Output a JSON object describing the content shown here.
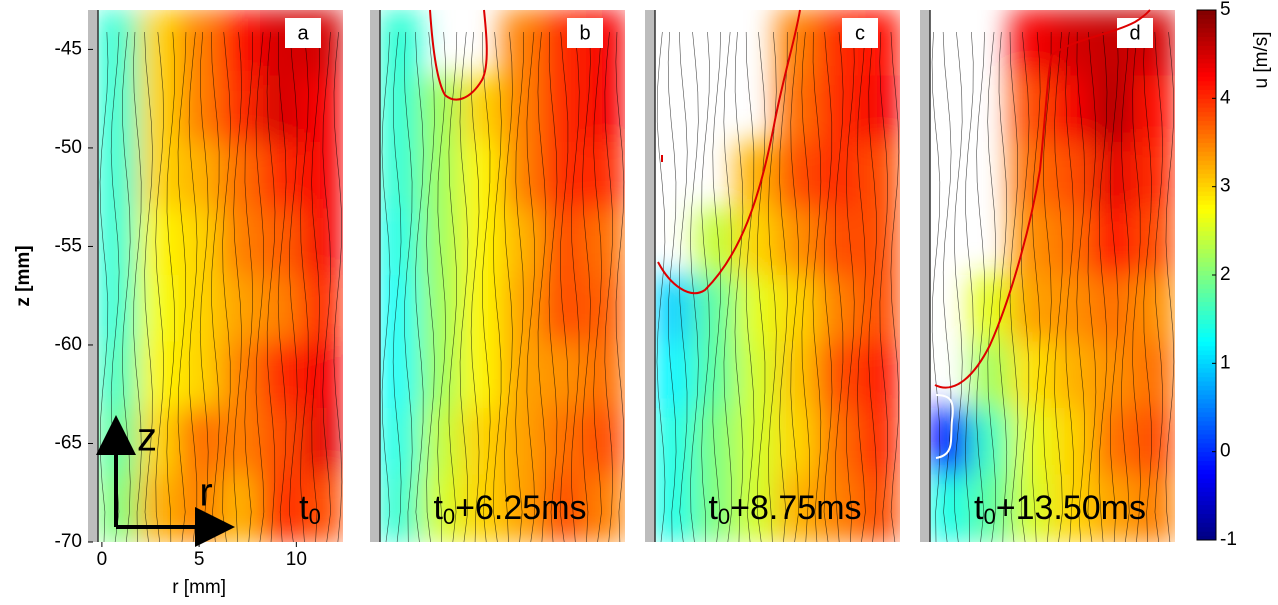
{
  "chart_data": {
    "type": "heatmap",
    "xlabel": "r [mm]",
    "ylabel": "z [mm]",
    "xlim": [
      -0.2,
      12.4
    ],
    "xticks": [
      0,
      5,
      10
    ],
    "ylim": [
      -70,
      -43
    ],
    "yticks": [
      -45,
      -50,
      -55,
      -60,
      -65,
      -70
    ],
    "colorbar": {
      "label": "u  [m/s]",
      "clim": [
        -1,
        5
      ],
      "ticks": [
        -1,
        0,
        1,
        2,
        3,
        4,
        5
      ]
    },
    "arrow_labels": [
      "z",
      "r"
    ],
    "panels": [
      {
        "letter": "a",
        "time": {
          "base": "t",
          "sub": "0"
        },
        "values": [
          [
            1.5,
            3,
            3.5,
            4.2,
            4.5,
            4.5
          ],
          [
            1.5,
            3,
            3.5,
            4,
            4.5,
            4.3
          ],
          [
            1.5,
            3,
            3.2,
            3.6,
            4,
            4.3
          ],
          [
            1.5,
            2.8,
            3,
            3.5,
            3.7,
            4.3
          ],
          [
            1.5,
            2.7,
            3,
            3.3,
            3.5,
            4
          ],
          [
            1.6,
            2.8,
            3,
            3.5,
            4,
            4.3
          ],
          [
            1.8,
            3,
            3.6,
            3.5,
            3.8,
            4.4
          ],
          [
            2,
            3.2,
            3.5,
            3.2,
            4,
            3.8
          ]
        ]
      },
      {
        "letter": "b",
        "time": {
          "base": "t",
          "sub": "0",
          "suffix": "+6.25ms"
        },
        "values": [
          [
            1.5,
            null,
            null,
            3.5,
            4,
            4.3
          ],
          [
            1.5,
            2.2,
            3,
            3.5,
            4,
            4.3
          ],
          [
            1.5,
            2.2,
            2.8,
            3.5,
            4,
            4
          ],
          [
            1.4,
            2.2,
            2.8,
            3.2,
            3.8,
            3.6
          ],
          [
            1.3,
            2.2,
            2.8,
            3.3,
            3.8,
            3.7
          ],
          [
            1.3,
            2.2,
            2.8,
            3.3,
            3.4,
            3.6
          ],
          [
            1.4,
            2.4,
            3,
            3.3,
            3.6,
            3.8
          ],
          [
            1.5,
            2.5,
            3,
            3.3,
            3.8,
            3.5
          ]
        ]
      },
      {
        "letter": "c",
        "time": {
          "base": "t",
          "sub": "0",
          "suffix": "+8.75ms"
        },
        "values": [
          [
            null,
            null,
            null,
            3.5,
            4,
            4.2
          ],
          [
            null,
            null,
            null,
            3.6,
            4,
            4.3
          ],
          [
            null,
            null,
            3.2,
            3.8,
            4,
            3.8
          ],
          [
            null,
            2.4,
            3,
            3.4,
            3.8,
            3.8
          ],
          [
            1,
            1.8,
            2.6,
            3,
            3.5,
            3.8
          ],
          [
            1.2,
            1.8,
            2.5,
            3.1,
            3.8,
            4.1
          ],
          [
            1.4,
            2,
            2.5,
            3,
            3.6,
            4
          ],
          [
            1.4,
            2,
            2.5,
            3.2,
            3.5,
            3.8
          ]
        ]
      },
      {
        "letter": "d",
        "time": {
          "base": "t",
          "sub": "0",
          "suffix": "+13.50ms"
        },
        "values": [
          [
            null,
            null,
            4.3,
            4.5,
            4.6,
            4.5
          ],
          [
            null,
            null,
            3.8,
            4.3,
            4.7,
            4.2
          ],
          [
            null,
            null,
            3.6,
            3.8,
            4.4,
            4
          ],
          [
            null,
            null,
            3.4,
            3.6,
            4.2,
            3.8
          ],
          [
            null,
            2.6,
            3.3,
            3.4,
            3.6,
            3.4
          ],
          [
            null,
            2.2,
            2.9,
            3.2,
            3.4,
            3.6
          ],
          [
            -0.2,
            1.6,
            2.6,
            3,
            3.6,
            3.8
          ],
          [
            1.4,
            1.8,
            2.5,
            3,
            3.3,
            3.5
          ]
        ]
      }
    ]
  }
}
